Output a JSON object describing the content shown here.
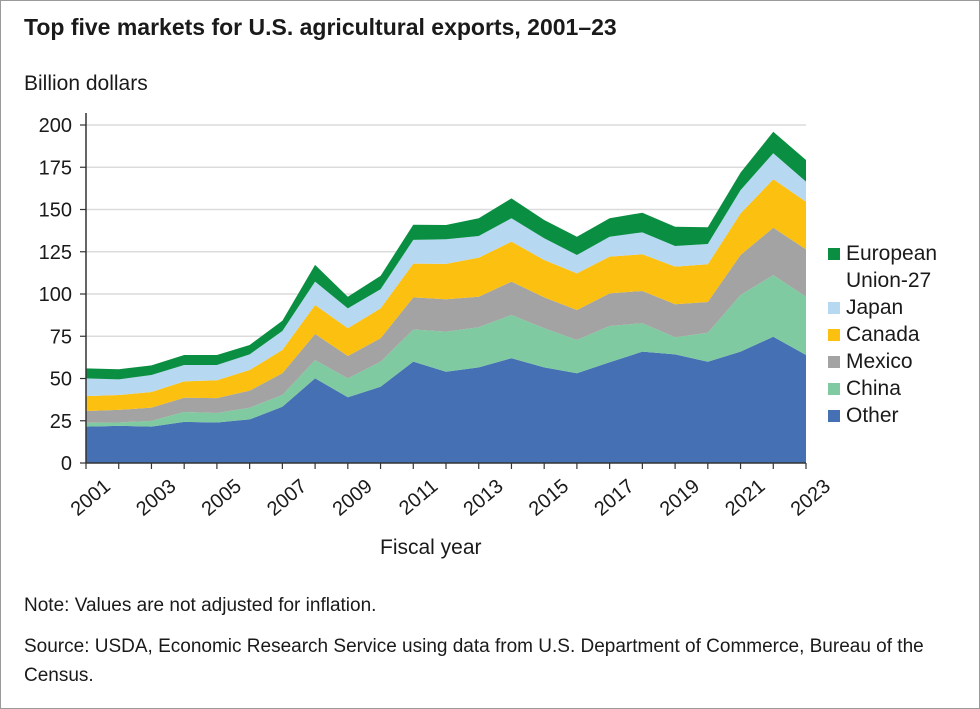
{
  "chart_data": {
    "type": "area",
    "stacked": true,
    "title": "Top five markets for U.S. agricultural exports, 2001–23",
    "ylabel": "Billion dollars",
    "xlabel": "Fiscal year",
    "ylim": [
      0,
      200
    ],
    "yticks": [
      0,
      25,
      50,
      75,
      100,
      125,
      150,
      175,
      200
    ],
    "xticks": [
      2001,
      2003,
      2005,
      2007,
      2009,
      2011,
      2013,
      2015,
      2017,
      2019,
      2021,
      2023
    ],
    "grid": true,
    "legend_position": "right",
    "x": [
      2001,
      2002,
      2003,
      2004,
      2005,
      2006,
      2007,
      2008,
      2009,
      2010,
      2011,
      2012,
      2013,
      2014,
      2015,
      2016,
      2017,
      2018,
      2019,
      2020,
      2021,
      2022,
      2023
    ],
    "series": [
      {
        "name": "Other",
        "color": "#4570b4",
        "values": [
          21.5,
          22.0,
          21.5,
          24.3,
          24.0,
          25.8,
          33.3,
          50.1,
          38.9,
          45.1,
          60.0,
          54.0,
          56.6,
          62.0,
          56.6,
          53.1,
          59.6,
          65.9,
          64.3,
          59.9,
          65.9,
          74.7,
          63.9
        ]
      },
      {
        "name": "China",
        "color": "#7fcaa0",
        "values": [
          2.3,
          2.0,
          3.4,
          5.9,
          5.6,
          6.9,
          6.9,
          10.8,
          11.2,
          14.8,
          19.0,
          23.7,
          23.7,
          25.6,
          23.1,
          19.7,
          21.5,
          16.8,
          10.1,
          17.2,
          33.5,
          36.5,
          34.5
        ]
      },
      {
        "name": "Mexico",
        "color": "#a3a3a3",
        "values": [
          7.0,
          7.4,
          7.9,
          8.4,
          8.8,
          10.1,
          12.9,
          15.4,
          13.2,
          13.9,
          19.0,
          19.2,
          18.1,
          19.7,
          18.3,
          17.7,
          19.3,
          19.1,
          19.5,
          18.2,
          23.7,
          28.0,
          28.0
        ]
      },
      {
        "name": "Canada",
        "color": "#fcc010",
        "values": [
          8.8,
          8.8,
          9.2,
          9.7,
          10.6,
          12.2,
          13.8,
          17.2,
          16.4,
          17.7,
          20.0,
          20.9,
          23.1,
          23.7,
          22.1,
          21.7,
          21.7,
          21.7,
          22.3,
          22.3,
          24.6,
          28.7,
          28.2
        ]
      },
      {
        "name": "Japan",
        "color": "#b7d8f1",
        "values": [
          10.5,
          9.3,
          10.1,
          9.7,
          9.0,
          9.3,
          11.2,
          13.8,
          11.8,
          11.3,
          14.0,
          14.6,
          12.8,
          13.8,
          12.9,
          10.9,
          11.8,
          13.0,
          12.2,
          12.0,
          13.8,
          15.4,
          11.9
        ]
      },
      {
        "name": "European\nUnion-27",
        "color": "#0a8f42",
        "values": [
          5.9,
          6.0,
          5.7,
          5.9,
          5.9,
          5.5,
          6.1,
          9.9,
          6.9,
          7.9,
          9.0,
          8.4,
          10.5,
          11.8,
          10.8,
          10.8,
          10.9,
          11.6,
          11.4,
          9.9,
          10.3,
          12.7,
          12.8
        ]
      }
    ]
  },
  "legend": {
    "items": [
      {
        "label": "European\nUnion-27",
        "color": "#0a8f42"
      },
      {
        "label": "Japan",
        "color": "#b7d8f1"
      },
      {
        "label": "Canada",
        "color": "#fcc010"
      },
      {
        "label": "Mexico",
        "color": "#a3a3a3"
      },
      {
        "label": "China",
        "color": "#7fcaa0"
      },
      {
        "label": "Other",
        "color": "#4570b4"
      }
    ]
  },
  "note": "Note: Values are not adjusted for inflation.",
  "source": "Source: USDA, Economic Research Service using data from U.S. Department of Commerce, Bureau of the Census."
}
